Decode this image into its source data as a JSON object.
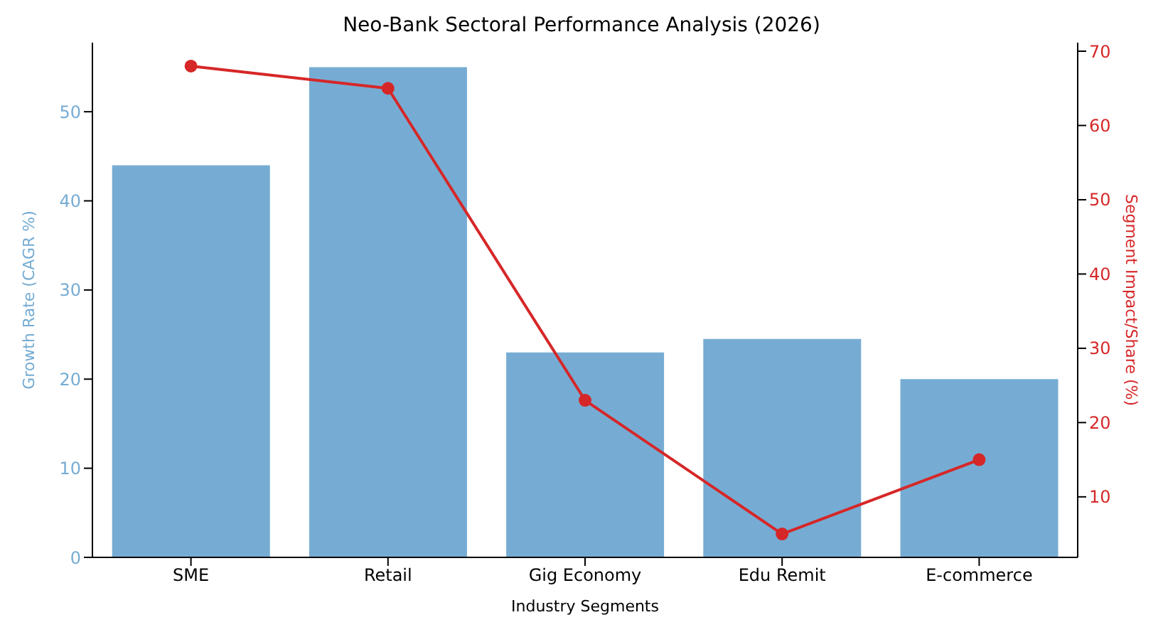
{
  "chart_data": {
    "type": "bar",
    "title": "Neo-Bank Sectoral Performance Analysis (2026)",
    "xlabel": "Industry Segments",
    "ylabel": "Growth Rate (CAGR %)",
    "y2label": "Segment Impact/Share (%)",
    "categories": [
      "SME",
      "Retail",
      "Gig Economy",
      "Edu Remit",
      "E-commerce"
    ],
    "series": [
      {
        "color": "#76acd3",
        "values": [
          44,
          55,
          23,
          24.5,
          20
        ]
      },
      {
        "type": "line",
        "axis": "y2",
        "color": "#d62728",
        "marker": "circle",
        "line_style": "solid",
        "values": [
          68,
          65,
          23,
          5,
          15
        ]
      }
    ],
    "ylim": [
      0,
      57.75
    ],
    "yticks": [
      0,
      10,
      20,
      30,
      40,
      50
    ],
    "y2lim": [
      1.85,
      71.15
    ],
    "y2ticks": [
      10,
      20,
      30,
      40,
      50,
      60,
      70
    ],
    "grid": false,
    "legend": false
  }
}
